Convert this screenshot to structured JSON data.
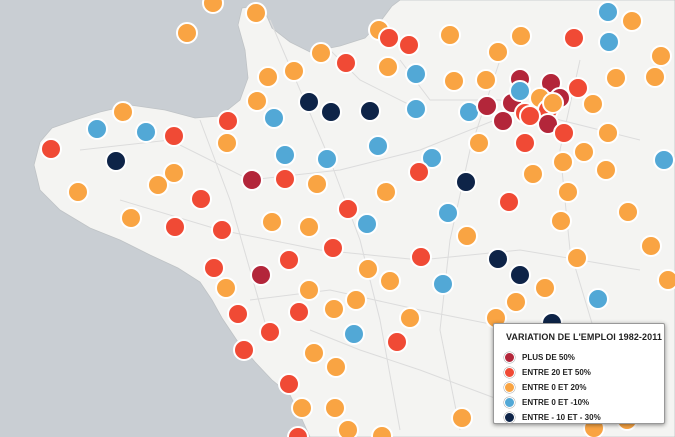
{
  "legend": {
    "title": "VARIATION DE L'EMPLOI 1982-2011",
    "items": [
      {
        "label": "PLUS DE 50%",
        "color": "#b3263a"
      },
      {
        "label": "ENTRE 20 ET 50%",
        "color": "#f04a35"
      },
      {
        "label": "ENTRE 0 ET 20%",
        "color": "#f9a443"
      },
      {
        "label": "ENTRE 0 ET -10%",
        "color": "#52a8d6"
      },
      {
        "label": "ENTRE - 10 ET - 30%",
        "color": "#0e2448"
      }
    ]
  },
  "colors": {
    "sea": "#c9ced3",
    "land": "#f4f4f2",
    "road": "#dcdcdc"
  }
}
